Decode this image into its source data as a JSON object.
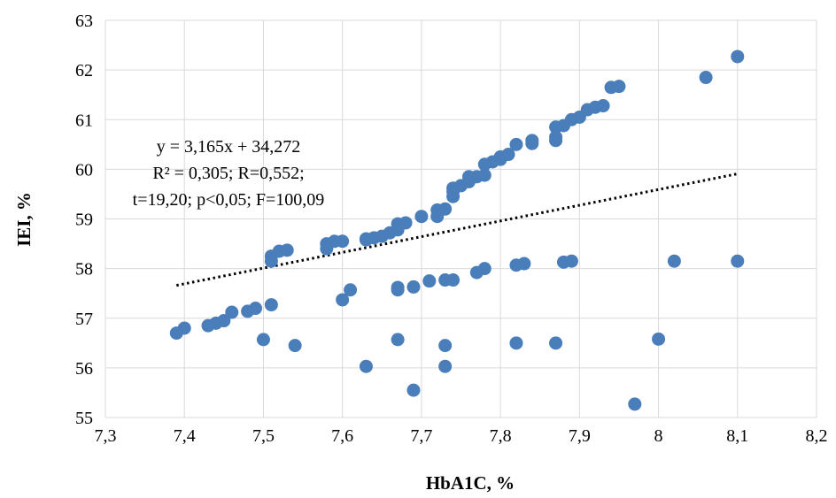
{
  "chart_data": {
    "type": "scatter",
    "xlabel": "HbA1C, %",
    "ylabel": "IEI, %",
    "xlim": [
      7.3,
      8.2
    ],
    "ylim": [
      55,
      63
    ],
    "x_ticks": [
      "7,3",
      "7,4",
      "7,5",
      "7,6",
      "7,7",
      "7,8",
      "7,9",
      "8",
      "8,1",
      "8,2"
    ],
    "y_ticks": [
      "55",
      "56",
      "57",
      "58",
      "59",
      "60",
      "61",
      "62",
      "63"
    ],
    "grid": true,
    "marker_color": "#4a7ebb",
    "trendline": {
      "slope": 3.165,
      "intercept": 34.272,
      "x_range": [
        7.39,
        8.1
      ],
      "style": "dotted"
    },
    "annotation": [
      "y = 3,165x + 34,272",
      "R² = 0,305; R=0,552;",
      "t=19,20; p<0,05; F=100,09"
    ],
    "points": [
      [
        7.39,
        56.7
      ],
      [
        7.4,
        56.8
      ],
      [
        7.43,
        56.85
      ],
      [
        7.44,
        56.9
      ],
      [
        7.45,
        56.95
      ],
      [
        7.46,
        57.12
      ],
      [
        7.48,
        57.14
      ],
      [
        7.49,
        57.2
      ],
      [
        7.51,
        58.15
      ],
      [
        7.51,
        58.25
      ],
      [
        7.52,
        58.35
      ],
      [
        7.53,
        58.37
      ],
      [
        7.58,
        58.4
      ],
      [
        7.58,
        58.5
      ],
      [
        7.59,
        58.55
      ],
      [
        7.6,
        58.55
      ],
      [
        7.63,
        58.58
      ],
      [
        7.63,
        58.6
      ],
      [
        7.64,
        58.62
      ],
      [
        7.65,
        58.65
      ],
      [
        7.66,
        58.72
      ],
      [
        7.67,
        58.78
      ],
      [
        7.67,
        58.9
      ],
      [
        7.68,
        58.92
      ],
      [
        7.7,
        59.05
      ],
      [
        7.72,
        59.05
      ],
      [
        7.72,
        59.18
      ],
      [
        7.73,
        59.2
      ],
      [
        7.74,
        59.45
      ],
      [
        7.74,
        59.55
      ],
      [
        7.74,
        59.62
      ],
      [
        7.75,
        59.67
      ],
      [
        7.76,
        59.75
      ],
      [
        7.76,
        59.85
      ],
      [
        7.77,
        59.85
      ],
      [
        7.78,
        59.88
      ],
      [
        7.78,
        60.1
      ],
      [
        7.79,
        60.15
      ],
      [
        7.8,
        60.2
      ],
      [
        7.8,
        60.25
      ],
      [
        7.81,
        60.3
      ],
      [
        7.82,
        60.5
      ],
      [
        7.84,
        60.52
      ],
      [
        7.84,
        60.58
      ],
      [
        7.87,
        60.58
      ],
      [
        7.87,
        60.65
      ],
      [
        7.87,
        60.85
      ],
      [
        7.88,
        60.88
      ],
      [
        7.89,
        61.0
      ],
      [
        7.9,
        61.05
      ],
      [
        7.91,
        61.2
      ],
      [
        7.92,
        61.25
      ],
      [
        7.93,
        61.28
      ],
      [
        7.94,
        61.65
      ],
      [
        7.95,
        61.67
      ],
      [
        8.06,
        61.85
      ],
      [
        8.1,
        62.27
      ],
      [
        7.5,
        56.57
      ],
      [
        7.51,
        57.27
      ],
      [
        7.54,
        56.45
      ],
      [
        7.6,
        57.37
      ],
      [
        7.61,
        57.57
      ],
      [
        7.63,
        56.03
      ],
      [
        7.67,
        57.57
      ],
      [
        7.67,
        57.62
      ],
      [
        7.67,
        56.57
      ],
      [
        7.69,
        57.63
      ],
      [
        7.69,
        55.55
      ],
      [
        7.71,
        57.75
      ],
      [
        7.73,
        57.77
      ],
      [
        7.74,
        57.77
      ],
      [
        7.73,
        56.45
      ],
      [
        7.73,
        56.03
      ],
      [
        7.77,
        57.92
      ],
      [
        7.78,
        58.0
      ],
      [
        7.82,
        58.07
      ],
      [
        7.83,
        58.1
      ],
      [
        7.82,
        56.5
      ],
      [
        7.87,
        56.5
      ],
      [
        7.88,
        58.13
      ],
      [
        7.89,
        58.15
      ],
      [
        7.97,
        55.27
      ],
      [
        8.0,
        56.58
      ],
      [
        8.02,
        58.15
      ],
      [
        8.1,
        58.15
      ]
    ]
  }
}
